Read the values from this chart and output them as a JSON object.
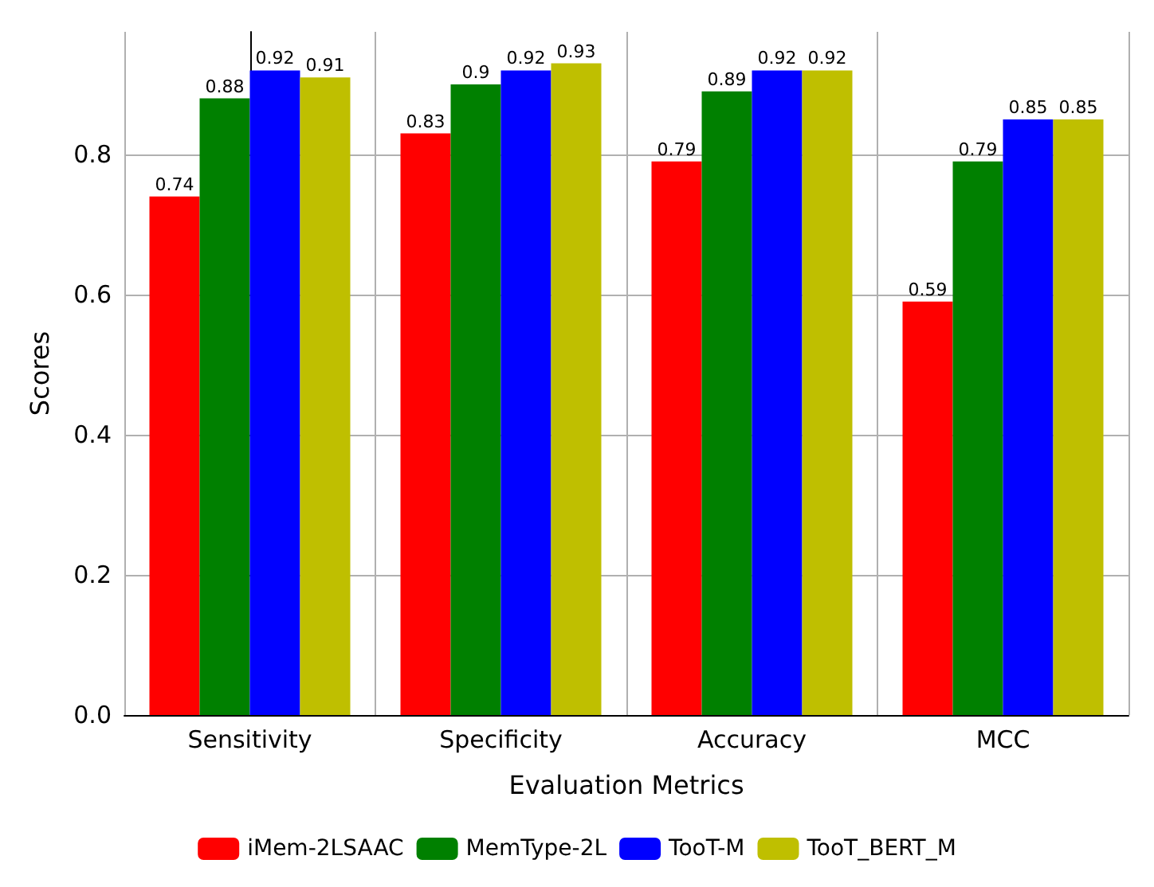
{
  "chart_data": {
    "type": "bar",
    "xlabel": "Evaluation Metrics",
    "ylabel": "Scores",
    "categories": [
      "Sensitivity",
      "Specificity",
      "Accuracy",
      "MCC"
    ],
    "series": [
      {
        "name": "iMem-2LSAAC",
        "color": "#ff0000",
        "values": [
          0.74,
          0.83,
          0.79,
          0.59
        ]
      },
      {
        "name": "MemType-2L",
        "color": "#008000",
        "values": [
          0.88,
          0.9,
          0.89,
          0.79
        ]
      },
      {
        "name": "TooT-M",
        "color": "#0000ff",
        "values": [
          0.92,
          0.92,
          0.92,
          0.85
        ]
      },
      {
        "name": "TooT_BERT_M",
        "color": "#bfbf00",
        "values": [
          0.91,
          0.93,
          0.92,
          0.85
        ]
      }
    ],
    "ylim": [
      0,
      0.975
    ],
    "yticks": [
      {
        "value": 0,
        "label": "0.0"
      },
      0.2,
      0.4,
      0.6,
      0.8
    ],
    "grid": true,
    "legend": "bottom",
    "data_labels": true
  }
}
